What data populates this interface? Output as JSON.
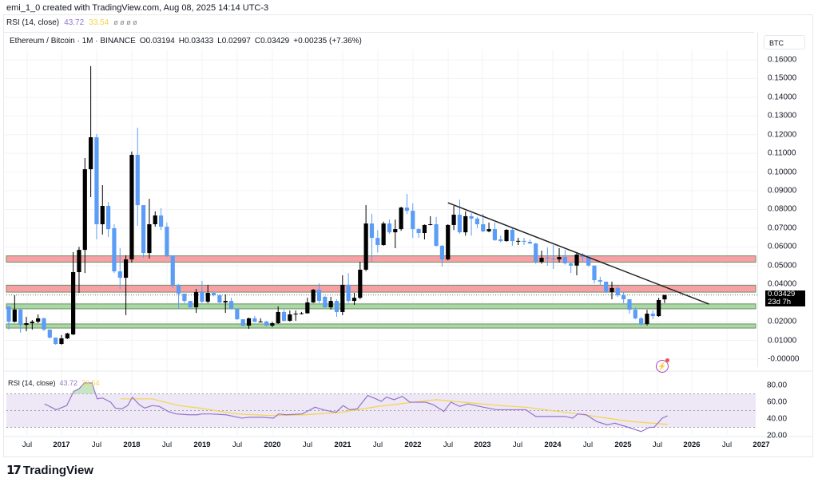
{
  "header": {
    "credit": "emi_1_0 created with TradingView.com, Aug 08, 2025 14:14 UTC-3"
  },
  "rsi_legend_top": {
    "label": "RSI (14, close)",
    "rsi": "43.72",
    "ma": "33.54",
    "hidden_icons": "ø ø ø ø"
  },
  "symbol_legend": {
    "symbol": "Ethereum / Bitcoin · 1M · BINANCE",
    "open": "O0.03194",
    "high": "H0.03433",
    "low": "L0.02997",
    "close": "C0.03429",
    "change": "+0.00235 (+7.36%)"
  },
  "price_axis": {
    "currency": "BTC",
    "labels": [
      "0.16000",
      "0.15000",
      "0.14000",
      "0.13000",
      "0.12000",
      "0.11000",
      "0.10000",
      "0.09000",
      "0.08000",
      "0.07000",
      "0.06000",
      "0.05000",
      "0.04000",
      "0.02000",
      "0.01000",
      "-0.00000"
    ],
    "last_price": "0.03429",
    "countdown": "23d 7h"
  },
  "rsi_pane": {
    "label": "RSI (14, close)",
    "rsi": "43.72",
    "ma": "33.54",
    "axis_labels": [
      "80.00",
      "60.00",
      "40.00",
      "20.00"
    ]
  },
  "time_axis": [
    "Jul",
    "2017",
    "Jul",
    "2018",
    "Jul",
    "2019",
    "Jul",
    "2020",
    "Jul",
    "2021",
    "Jul",
    "2022",
    "Jul",
    "2023",
    "Jul",
    "2024",
    "Jul",
    "2025",
    "Jul",
    "2026",
    "Jul",
    "2027"
  ],
  "branding": {
    "logo_text": "TradingView"
  },
  "colors": {
    "up": "#000000",
    "down": "#5b9cf6",
    "resistance": "#f7a1a6",
    "support": "#a9d8a6",
    "zone_border": "#6f8f5f",
    "rsi": "#9575cd",
    "rsi_ma": "#f5d547",
    "rsi_band": "#ede7f6"
  },
  "chart_data": {
    "type": "candlestick",
    "title": "Ethereum / Bitcoin · 1M · BINANCE",
    "interval": "1M",
    "start_month": "2016-04",
    "ylabel": "BTC",
    "ylim": [
      -0.005,
      0.165
    ],
    "candles_ohlc": [
      [
        0.0282,
        0.0282,
        0.0158,
        0.02
      ],
      [
        0.02,
        0.0341,
        0.0196,
        0.0265
      ],
      [
        0.0265,
        0.0268,
        0.0141,
        0.0183
      ],
      [
        0.0183,
        0.0226,
        0.0149,
        0.0192
      ],
      [
        0.0192,
        0.0209,
        0.0158,
        0.02
      ],
      [
        0.02,
        0.0239,
        0.0192,
        0.0218
      ],
      [
        0.0218,
        0.0222,
        0.015,
        0.0158
      ],
      [
        0.0158,
        0.0158,
        0.011,
        0.0115
      ],
      [
        0.0115,
        0.0115,
        0.0077,
        0.0081
      ],
      [
        0.0081,
        0.0128,
        0.0077,
        0.0111
      ],
      [
        0.0111,
        0.0141,
        0.0107,
        0.0137
      ],
      [
        0.0132,
        0.0572,
        0.0128,
        0.0465
      ],
      [
        0.0465,
        0.06,
        0.0354,
        0.0584
      ],
      [
        0.0584,
        0.1075,
        0.046,
        0.1015
      ],
      [
        0.1015,
        0.1566,
        0.0866,
        0.1186
      ],
      [
        0.1186,
        0.1203,
        0.064,
        0.0721
      ],
      [
        0.0721,
        0.093,
        0.0666,
        0.0819
      ],
      [
        0.0819,
        0.084,
        0.0653,
        0.0695
      ],
      [
        0.07,
        0.0721,
        0.046,
        0.0469
      ],
      [
        0.0469,
        0.0593,
        0.0375,
        0.0435
      ],
      [
        0.0435,
        0.0555,
        0.0235,
        0.0533
      ],
      [
        0.0533,
        0.111,
        0.0516,
        0.1092
      ],
      [
        0.1092,
        0.1237,
        0.0712,
        0.0823
      ],
      [
        0.0823,
        0.0823,
        0.0542,
        0.0567
      ],
      [
        0.0567,
        0.0857,
        0.0538,
        0.0721
      ],
      [
        0.0721,
        0.079,
        0.0708,
        0.0768
      ],
      [
        0.0768,
        0.0806,
        0.069,
        0.0708
      ],
      [
        0.0708,
        0.073,
        0.0545,
        0.0555
      ],
      [
        0.0555,
        0.0555,
        0.038,
        0.0397
      ],
      [
        0.0397,
        0.04,
        0.027,
        0.035
      ],
      [
        0.035,
        0.035,
        0.03,
        0.0311
      ],
      [
        0.0311,
        0.0311,
        0.0273,
        0.0277
      ],
      [
        0.0277,
        0.0375,
        0.0247,
        0.0358
      ],
      [
        0.0358,
        0.0418,
        0.03,
        0.0307
      ],
      [
        0.0307,
        0.0397,
        0.0299,
        0.0354
      ],
      [
        0.0354,
        0.0358,
        0.0336,
        0.0341
      ],
      [
        0.0341,
        0.0346,
        0.03,
        0.0303
      ],
      [
        0.0303,
        0.0346,
        0.0247,
        0.0311
      ],
      [
        0.0311,
        0.0328,
        0.0265,
        0.0269
      ],
      [
        0.0269,
        0.0269,
        0.021,
        0.0213
      ],
      [
        0.0213,
        0.0213,
        0.0175,
        0.0179
      ],
      [
        0.0179,
        0.0222,
        0.0162,
        0.0218
      ],
      [
        0.0218,
        0.023,
        0.0196,
        0.02
      ],
      [
        0.02,
        0.0218,
        0.0196,
        0.0201
      ],
      [
        0.0201,
        0.0205,
        0.0175,
        0.0179
      ],
      [
        0.0179,
        0.02,
        0.0171,
        0.0192
      ],
      [
        0.0192,
        0.0282,
        0.0188,
        0.0252
      ],
      [
        0.0252,
        0.0265,
        0.02,
        0.0205
      ],
      [
        0.0205,
        0.026,
        0.02,
        0.0239
      ],
      [
        0.0239,
        0.026,
        0.0205,
        0.0243
      ],
      [
        0.0243,
        0.0252,
        0.0239,
        0.0245
      ],
      [
        0.0245,
        0.0328,
        0.0243,
        0.0303
      ],
      [
        0.0303,
        0.0375,
        0.03,
        0.0371
      ],
      [
        0.0371,
        0.0405,
        0.03,
        0.0311
      ],
      [
        0.0333,
        0.0337,
        0.0273,
        0.0277
      ],
      [
        0.0277,
        0.0333,
        0.0264,
        0.0311
      ],
      [
        0.0311,
        0.032,
        0.0226,
        0.0252
      ],
      [
        0.0252,
        0.0448,
        0.0235,
        0.0397
      ],
      [
        0.0397,
        0.046,
        0.03,
        0.0311
      ],
      [
        0.0311,
        0.0354,
        0.029,
        0.0328
      ],
      [
        0.0328,
        0.052,
        0.032,
        0.0478
      ],
      [
        0.0478,
        0.0823,
        0.047,
        0.0725
      ],
      [
        0.0725,
        0.0776,
        0.052,
        0.0648
      ],
      [
        0.0648,
        0.069,
        0.057,
        0.061
      ],
      [
        0.061,
        0.0735,
        0.0606,
        0.0725
      ],
      [
        0.0725,
        0.0746,
        0.067,
        0.0678
      ],
      [
        0.0678,
        0.0746,
        0.0593,
        0.0695
      ],
      [
        0.0695,
        0.0815,
        0.0686,
        0.081
      ],
      [
        0.081,
        0.0883,
        0.0776,
        0.0793
      ],
      [
        0.0793,
        0.0832,
        0.0648,
        0.0695
      ],
      [
        0.0695,
        0.07,
        0.0648,
        0.0674
      ],
      [
        0.0674,
        0.072,
        0.064,
        0.0717
      ],
      [
        0.0717,
        0.0764,
        0.0715,
        0.0721
      ],
      [
        0.0721,
        0.076,
        0.0601,
        0.0606
      ],
      [
        0.0606,
        0.061,
        0.0495,
        0.0533
      ],
      [
        0.0533,
        0.0721,
        0.0528,
        0.0717
      ],
      [
        0.0717,
        0.0819,
        0.069,
        0.0772
      ],
      [
        0.0772,
        0.0853,
        0.067,
        0.0678
      ],
      [
        0.0678,
        0.079,
        0.066,
        0.0764
      ],
      [
        0.0764,
        0.078,
        0.066,
        0.0751
      ],
      [
        0.0751,
        0.076,
        0.07,
        0.0721
      ],
      [
        0.0721,
        0.0776,
        0.0678,
        0.0683
      ],
      [
        0.0683,
        0.073,
        0.0678,
        0.0695
      ],
      [
        0.0695,
        0.073,
        0.0632,
        0.0636
      ],
      [
        0.064,
        0.066,
        0.0625,
        0.0631
      ],
      [
        0.0631,
        0.0695,
        0.0628,
        0.0691
      ],
      [
        0.0691,
        0.07,
        0.0606,
        0.0631
      ],
      [
        0.0631,
        0.0648,
        0.061,
        0.0632
      ],
      [
        0.0632,
        0.0648,
        0.061,
        0.0627
      ],
      [
        0.0627,
        0.064,
        0.0615,
        0.0618
      ],
      [
        0.0618,
        0.0621,
        0.051,
        0.052
      ],
      [
        0.052,
        0.058,
        0.051,
        0.0542
      ],
      [
        0.0542,
        0.0597,
        0.05,
        0.0537
      ],
      [
        0.0537,
        0.061,
        0.0482,
        0.0533
      ],
      [
        0.0533,
        0.0593,
        0.0516,
        0.0546
      ],
      [
        0.0546,
        0.0584,
        0.0505,
        0.0512
      ],
      [
        0.0512,
        0.0515,
        0.046,
        0.05
      ],
      [
        0.05,
        0.0572,
        0.0448,
        0.0559
      ],
      [
        0.0559,
        0.0567,
        0.0516,
        0.0546
      ],
      [
        0.0546,
        0.0555,
        0.0495,
        0.05
      ],
      [
        0.05,
        0.05,
        0.0405,
        0.0422
      ],
      [
        0.0422,
        0.044,
        0.0392,
        0.0414
      ],
      [
        0.0414,
        0.0414,
        0.0354,
        0.0358
      ],
      [
        0.0358,
        0.0414,
        0.032,
        0.038
      ],
      [
        0.038,
        0.0392,
        0.0333,
        0.0341
      ],
      [
        0.0341,
        0.0358,
        0.0299,
        0.032
      ],
      [
        0.032,
        0.032,
        0.0243,
        0.0264
      ],
      [
        0.0264,
        0.0277,
        0.0213,
        0.0218
      ],
      [
        0.0218,
        0.0226,
        0.0179,
        0.0188
      ],
      [
        0.0188,
        0.0264,
        0.0179,
        0.0243
      ],
      [
        0.0243,
        0.026,
        0.0213,
        0.023
      ],
      [
        0.023,
        0.0328,
        0.0226,
        0.0316
      ],
      [
        0.03194,
        0.03433,
        0.02997,
        0.03429
      ]
    ],
    "zones": [
      {
        "type": "resistance",
        "range": [
          0.0518,
          0.0552
        ]
      },
      {
        "type": "resistance",
        "range": [
          0.0358,
          0.0395
        ]
      },
      {
        "type": "support",
        "range": [
          0.0269,
          0.0295
        ]
      },
      {
        "type": "support",
        "range": [
          0.0166,
          0.0188
        ]
      }
    ],
    "trendline": {
      "from": {
        "month_index": 75,
        "price": 0.0836
      },
      "to": {
        "month_index": 119.6,
        "price": 0.0294
      }
    },
    "last_price_line": 0.03429,
    "rsi": {
      "ylim": [
        15,
        90
      ],
      "bands": [
        70,
        50,
        30
      ],
      "points": [
        [
          6.1,
          58
        ],
        [
          8.1,
          51
        ],
        [
          9.9,
          56
        ],
        [
          11.1,
          73
        ],
        [
          12,
          76
        ],
        [
          12.9,
          83
        ],
        [
          14.2,
          83
        ],
        [
          15.1,
          64
        ],
        [
          16,
          65
        ],
        [
          17.4,
          60
        ],
        [
          18.2,
          53
        ],
        [
          19.3,
          52
        ],
        [
          20.3,
          56
        ],
        [
          21.1,
          66
        ],
        [
          22.3,
          57
        ],
        [
          23.2,
          53
        ],
        [
          24.5,
          56
        ],
        [
          25.7,
          55
        ],
        [
          27.2,
          49
        ],
        [
          28.6,
          46
        ],
        [
          30.8,
          45
        ],
        [
          32.2,
          45
        ],
        [
          33,
          46
        ],
        [
          34.4,
          46
        ],
        [
          37.1,
          45
        ],
        [
          39.8,
          41
        ],
        [
          41.1,
          42
        ],
        [
          43.4,
          42
        ],
        [
          45.2,
          41
        ],
        [
          46.1,
          46
        ],
        [
          47.4,
          45
        ],
        [
          50.1,
          46
        ],
        [
          52.3,
          54
        ],
        [
          53.7,
          51
        ],
        [
          55,
          49
        ],
        [
          55.9,
          48
        ],
        [
          57.1,
          56
        ],
        [
          58.2,
          51
        ],
        [
          59.5,
          52
        ],
        [
          61.3,
          68
        ],
        [
          62.7,
          64
        ],
        [
          63.6,
          61
        ],
        [
          64.5,
          66
        ],
        [
          65.8,
          63
        ],
        [
          67.2,
          67
        ],
        [
          68.5,
          60
        ],
        [
          69.9,
          60
        ],
        [
          71.2,
          60
        ],
        [
          72.5,
          57
        ],
        [
          74.3,
          49
        ],
        [
          75.5,
          60
        ],
        [
          77,
          55
        ],
        [
          78.4,
          58
        ],
        [
          79.7,
          56
        ],
        [
          81.1,
          54
        ],
        [
          83.3,
          51
        ],
        [
          85.1,
          51
        ],
        [
          88.3,
          51
        ],
        [
          90,
          43
        ],
        [
          91.8,
          43
        ],
        [
          95,
          43
        ],
        [
          96.3,
          41
        ],
        [
          97.2,
          46
        ],
        [
          98.6,
          45
        ],
        [
          100.4,
          37
        ],
        [
          102.2,
          33
        ],
        [
          103.5,
          35
        ],
        [
          105.8,
          30
        ],
        [
          108,
          25
        ],
        [
          109.4,
          30
        ],
        [
          110.2,
          30
        ],
        [
          111.6,
          41
        ],
        [
          112.5,
          43.72
        ]
      ],
      "ma_points": [
        [
          19.1,
          64
        ],
        [
          24.5,
          64
        ],
        [
          29,
          56
        ],
        [
          32.6,
          53
        ],
        [
          38.9,
          46
        ],
        [
          45.2,
          44
        ],
        [
          50.6,
          45
        ],
        [
          56.8,
          48
        ],
        [
          63.1,
          55
        ],
        [
          70.3,
          61
        ],
        [
          73,
          63
        ],
        [
          77.5,
          60
        ],
        [
          83.8,
          56
        ],
        [
          88.3,
          54
        ],
        [
          97.2,
          46
        ],
        [
          106.2,
          37
        ],
        [
          112.5,
          33.54
        ]
      ]
    }
  }
}
